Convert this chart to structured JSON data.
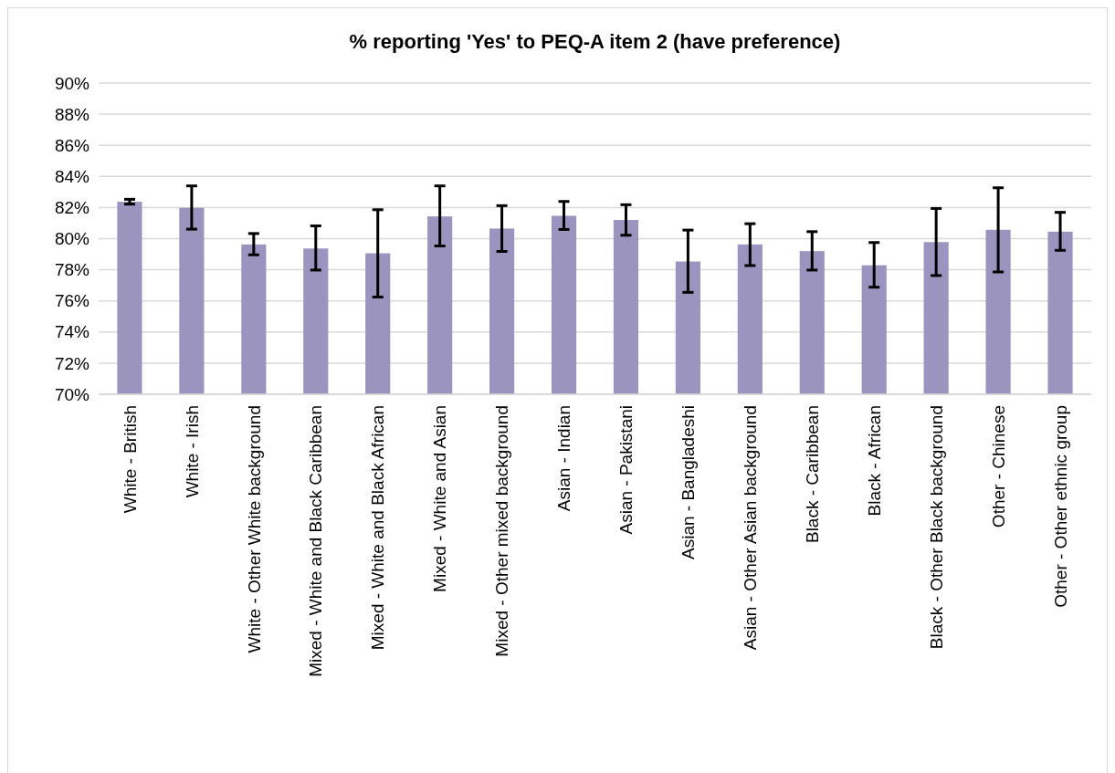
{
  "chart_data": {
    "type": "bar",
    "title": "% reporting 'Yes' to PEQ-A item 2 (have preference)",
    "categories": [
      "White - British",
      "White - Irish",
      "White - Other White background",
      "Mixed - White and Black Caribbean",
      "Mixed - White and Black African",
      "Mixed - White and Asian",
      "Mixed - Other mixed background",
      "Asian - Indian",
      "Asian - Pakistani",
      "Asian - Bangladeshi",
      "Asian - Other Asian background",
      "Black - Caribbean",
      "Black - African",
      "Black - Other Black background",
      "Other - Chinese",
      "Other - Other ethnic group"
    ],
    "values": [
      82.37,
      81.98,
      79.63,
      79.37,
      79.06,
      81.43,
      80.65,
      81.47,
      81.2,
      78.53,
      79.63,
      79.2,
      78.29,
      79.78,
      80.57,
      80.45
    ],
    "errors": [
      [
        82.22,
        82.53
      ],
      [
        80.61,
        83.39
      ],
      [
        78.96,
        80.33
      ],
      [
        77.98,
        80.82
      ],
      [
        76.25,
        81.86
      ],
      [
        79.53,
        83.39
      ],
      [
        79.18,
        82.12
      ],
      [
        80.59,
        82.39
      ],
      [
        80.22,
        82.18
      ],
      [
        76.55,
        80.55
      ],
      [
        78.27,
        80.96
      ],
      [
        77.98,
        80.45
      ],
      [
        76.88,
        79.75
      ],
      [
        77.63,
        81.94
      ],
      [
        77.86,
        83.27
      ],
      [
        79.25,
        81.69
      ]
    ],
    "color": "#9b94bf",
    "ylim": [
      70,
      90
    ],
    "yticks": [
      {
        "value": 70,
        "label": "70%"
      },
      {
        "value": 72,
        "label": "72%"
      },
      {
        "value": 74,
        "label": "74%"
      },
      {
        "value": 76,
        "label": "76%"
      },
      {
        "value": 78,
        "label": "78%"
      },
      {
        "value": 80,
        "label": "80%"
      },
      {
        "value": 82,
        "label": "82%"
      },
      {
        "value": 84,
        "label": "84%"
      },
      {
        "value": 86,
        "label": "86%"
      },
      {
        "value": 88,
        "label": "88%"
      },
      {
        "value": 90,
        "label": "90%"
      }
    ],
    "grid": "y"
  }
}
